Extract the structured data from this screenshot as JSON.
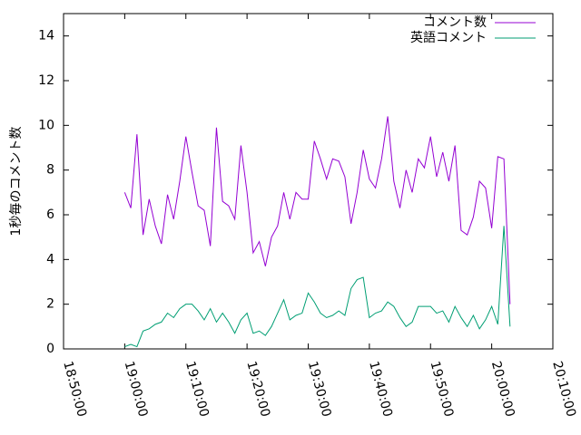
{
  "chart_data": {
    "type": "line",
    "ylabel": "1秒毎のコメント数",
    "x": [
      "19:00:00",
      "19:01:00",
      "19:02:00",
      "19:03:00",
      "19:04:00",
      "19:05:00",
      "19:06:00",
      "19:07:00",
      "19:08:00",
      "19:09:00",
      "19:10:00",
      "19:11:00",
      "19:12:00",
      "19:13:00",
      "19:14:00",
      "19:15:00",
      "19:16:00",
      "19:17:00",
      "19:18:00",
      "19:19:00",
      "19:20:00",
      "19:21:00",
      "19:22:00",
      "19:23:00",
      "19:24:00",
      "19:25:00",
      "19:26:00",
      "19:27:00",
      "19:28:00",
      "19:29:00",
      "19:30:00",
      "19:31:00",
      "19:32:00",
      "19:33:00",
      "19:34:00",
      "19:35:00",
      "19:36:00",
      "19:37:00",
      "19:38:00",
      "19:39:00",
      "19:40:00",
      "19:41:00",
      "19:42:00",
      "19:43:00",
      "19:44:00",
      "19:45:00",
      "19:46:00",
      "19:47:00",
      "19:48:00",
      "19:49:00",
      "19:50:00",
      "19:51:00",
      "19:52:00",
      "19:53:00",
      "19:54:00",
      "19:55:00",
      "19:56:00",
      "19:57:00",
      "19:58:00",
      "19:59:00",
      "20:00:00",
      "20:01:00",
      "20:02:00",
      "20:03:00"
    ],
    "series": [
      {
        "name": "コメント数",
        "color": "#9400d3",
        "values": [
          7.0,
          6.3,
          9.6,
          5.1,
          6.7,
          5.5,
          4.7,
          6.9,
          5.8,
          7.5,
          9.5,
          7.9,
          6.4,
          6.2,
          4.6,
          9.9,
          6.6,
          6.4,
          5.8,
          9.1,
          7.0,
          4.3,
          4.8,
          3.7,
          5.0,
          5.5,
          7.0,
          5.8,
          7.0,
          6.7,
          6.7,
          9.3,
          8.5,
          7.6,
          8.5,
          8.4,
          7.7,
          5.6,
          7.0,
          8.9,
          7.6,
          7.2,
          8.5,
          10.4,
          7.5,
          6.3,
          8.0,
          7.0,
          8.5,
          8.1,
          9.5,
          7.7,
          8.8,
          7.5,
          9.1,
          5.3,
          5.1,
          5.9,
          7.5,
          7.2,
          5.4,
          8.6,
          8.5,
          2.0
        ]
      },
      {
        "name": "英語コメント",
        "color": "#009e73",
        "values": [
          0.1,
          0.2,
          0.1,
          0.8,
          0.9,
          1.1,
          1.2,
          1.6,
          1.4,
          1.8,
          2.0,
          2.0,
          1.7,
          1.3,
          1.8,
          1.2,
          1.6,
          1.2,
          0.7,
          1.3,
          1.6,
          0.7,
          0.8,
          0.6,
          1.0,
          1.6,
          2.2,
          1.3,
          1.5,
          1.6,
          2.5,
          2.1,
          1.6,
          1.4,
          1.5,
          1.7,
          1.5,
          2.7,
          3.1,
          3.2,
          1.4,
          1.6,
          1.7,
          2.1,
          1.9,
          1.4,
          1.0,
          1.2,
          1.9,
          1.9,
          1.9,
          1.6,
          1.7,
          1.2,
          1.9,
          1.4,
          1.0,
          1.5,
          0.9,
          1.3,
          1.9,
          1.1,
          5.5,
          1.0
        ]
      }
    ],
    "xlim": [
      "18:50:00",
      "20:10:00"
    ],
    "xticks": [
      "18:50:00",
      "19:00:00",
      "19:10:00",
      "19:20:00",
      "19:30:00",
      "19:40:00",
      "19:50:00",
      "20:00:00",
      "20:10:00"
    ],
    "ylim": [
      0,
      15
    ],
    "yticks": [
      0,
      2,
      4,
      6,
      8,
      10,
      12,
      14
    ],
    "legend": "top-right"
  }
}
